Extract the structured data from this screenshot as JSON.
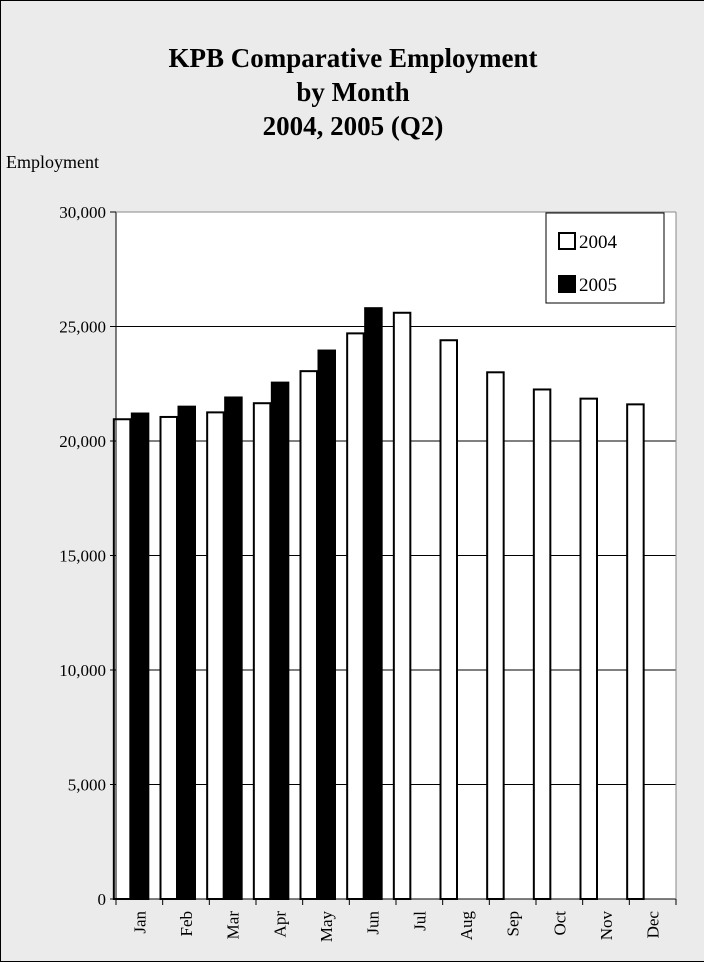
{
  "chart_data": {
    "type": "bar",
    "title_lines": [
      "KPB Comparative Employment",
      "by Month",
      "2004, 2005 (Q2)"
    ],
    "ylabel": "Employment",
    "xlabel": "",
    "categories": [
      "Jan",
      "Feb",
      "Mar",
      "Apr",
      "May",
      "Jun",
      "Jul",
      "Aug",
      "Sep",
      "Oct",
      "Nov",
      "Dec"
    ],
    "series": [
      {
        "name": "2004",
        "color": "#ffffff",
        "values": [
          20950,
          21050,
          21250,
          21650,
          23050,
          24700,
          25600,
          24400,
          23000,
          22250,
          21850,
          21600
        ]
      },
      {
        "name": "2005",
        "color": "#000000",
        "values": [
          21200,
          21500,
          21900,
          22550,
          23950,
          25800,
          null,
          null,
          null,
          null,
          null,
          null
        ]
      }
    ],
    "ylim": [
      0,
      30000
    ],
    "yticks": [
      0,
      5000,
      10000,
      15000,
      20000,
      25000,
      30000
    ],
    "ytick_labels": [
      "0",
      "5,000",
      "10,000",
      "15,000",
      "20,000",
      "25,000",
      "30,000"
    ],
    "grid": true,
    "legend_position": "top-right",
    "plot_background": "#ffffff",
    "figure_background": "#ebebeb"
  }
}
